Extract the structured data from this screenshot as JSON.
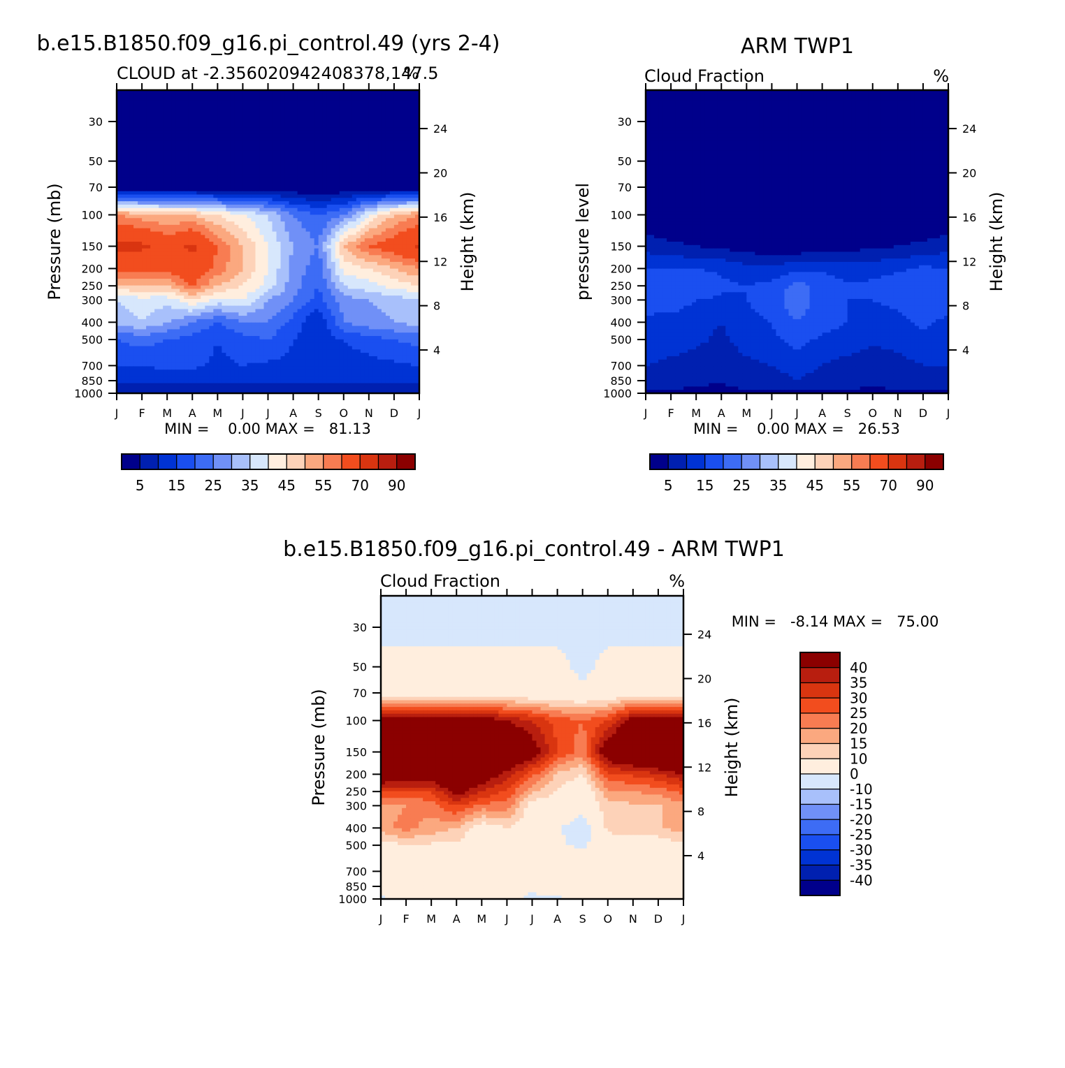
{
  "palettes": {
    "full": [
      "#00008b",
      "#0020b0",
      "#0033d4",
      "#1a4ff0",
      "#3d6cf5",
      "#7090f7",
      "#a8c0fb",
      "#d7e7fc",
      "#ffeede",
      "#fdd2b8",
      "#fba87f",
      "#f87c52",
      "#f24d1e",
      "#d93510",
      "#b81e0f",
      "#8b0000"
    ],
    "diff": [
      "#00008b",
      "#0020b0",
      "#0033d4",
      "#1a4ff0",
      "#3d6cf5",
      "#7090f7",
      "#a8c0fb",
      "#d7e7fc",
      "#ffeede",
      "#fdd2b8",
      "#fba87f",
      "#f87c52",
      "#f24d1e",
      "#d93510",
      "#b81e0f",
      "#8b0000"
    ]
  },
  "months": [
    "J",
    "F",
    "M",
    "A",
    "M",
    "J",
    "J",
    "A",
    "S",
    "O",
    "N",
    "D",
    "J"
  ],
  "pressure_ticks": [
    "30",
    "50",
    "70",
    "100",
    "150",
    "200",
    "250",
    "300",
    "400",
    "500",
    "700",
    "850",
    "1000"
  ],
  "height_ticks": [
    "24",
    "20",
    "16",
    "12",
    "8",
    "4"
  ],
  "panels": {
    "model": {
      "title": "b.e15.B1850.f09_g16.pi_control.49 (yrs 2-4)",
      "left_label": "CLOUD at -2.356020942408378,147.5",
      "right_label": "%",
      "ylabel": "Pressure (mb)",
      "y2label": "Height (km)",
      "minmax": "MIN =    0.00 MAX =   81.13",
      "colorbar_labels": [
        "5",
        "15",
        "25",
        "35",
        "45",
        "55",
        "70",
        "90"
      ]
    },
    "obs": {
      "title": "ARM TWP1",
      "left_label": "Cloud Fraction",
      "right_label": "%",
      "ylabel": "pressure level",
      "y2label": "Height (km)",
      "minmax": "MIN =    0.00 MAX =   26.53",
      "colorbar_labels": [
        "5",
        "15",
        "25",
        "35",
        "45",
        "55",
        "70",
        "90"
      ]
    },
    "diff": {
      "title": "b.e15.B1850.f09_g16.pi_control.49 - ARM TWP1",
      "left_label": "Cloud Fraction",
      "right_label": "%",
      "ylabel": "Pressure (mb)",
      "y2label": "Height (km)",
      "minmax": "MIN =   -8.14 MAX =   75.00",
      "colorbar_labels": [
        "40",
        "35",
        "30",
        "25",
        "20",
        "15",
        "10",
        "0",
        "-10",
        "-15",
        "-20",
        "-25",
        "-30",
        "-35",
        "-40"
      ]
    }
  },
  "chart_data": [
    {
      "type": "heatmap",
      "title": "b.e15.B1850.f09_g16.pi_control.49 (yrs 2-4)",
      "subtitle": "CLOUD at -2.356020942408378,147.5",
      "ylabel": "Pressure (mb)",
      "x": [
        "J",
        "F",
        "M",
        "A",
        "M",
        "J",
        "J",
        "A",
        "S",
        "O",
        "N",
        "D",
        "J"
      ],
      "y": [
        30,
        50,
        70,
        100,
        150,
        200,
        250,
        300,
        400,
        500,
        700,
        850,
        1000
      ],
      "min": 0.0,
      "max": 81.13,
      "levels": [
        5,
        10,
        15,
        20,
        25,
        30,
        35,
        40,
        45,
        50,
        55,
        60,
        70,
        80,
        90
      ],
      "values": [
        [
          0,
          0,
          0,
          0,
          0,
          0,
          0,
          0,
          0,
          0,
          0,
          0,
          0
        ],
        [
          0,
          0,
          0,
          0,
          0,
          0,
          0,
          0,
          0,
          0,
          0,
          0,
          0
        ],
        [
          0,
          0,
          0,
          0,
          0,
          0,
          0,
          0,
          0,
          0,
          0,
          0,
          0
        ],
        [
          55,
          52,
          50,
          50,
          45,
          40,
          35,
          25,
          20,
          25,
          40,
          50,
          55
        ],
        [
          72,
          72,
          65,
          72,
          60,
          50,
          40,
          30,
          25,
          50,
          60,
          65,
          72
        ],
        [
          65,
          62,
          62,
          67,
          58,
          50,
          40,
          28,
          22,
          42,
          45,
          50,
          55
        ],
        [
          48,
          50,
          50,
          60,
          50,
          45,
          38,
          27,
          20,
          35,
          38,
          42,
          45
        ],
        [
          35,
          38,
          37,
          45,
          38,
          40,
          30,
          25,
          18,
          28,
          30,
          32,
          35
        ],
        [
          32,
          35,
          30,
          25,
          20,
          25,
          25,
          18,
          10,
          25,
          28,
          30,
          32
        ],
        [
          20,
          22,
          20,
          18,
          15,
          18,
          20,
          15,
          12,
          15,
          18,
          20,
          22
        ],
        [
          15,
          15,
          16,
          16,
          14,
          15,
          14,
          14,
          12,
          12,
          13,
          14,
          15
        ],
        [
          12,
          12,
          12,
          12,
          12,
          11,
          11,
          11,
          11,
          11,
          12,
          12,
          12
        ],
        [
          5,
          5,
          5,
          5,
          5,
          5,
          5,
          5,
          5,
          5,
          5,
          5,
          5
        ]
      ]
    },
    {
      "type": "heatmap",
      "title": "ARM TWP1",
      "subtitle": "Cloud Fraction",
      "ylabel": "pressure level",
      "x": [
        "J",
        "F",
        "M",
        "A",
        "M",
        "J",
        "J",
        "A",
        "S",
        "O",
        "N",
        "D",
        "J"
      ],
      "y": [
        30,
        50,
        70,
        100,
        150,
        200,
        250,
        300,
        400,
        500,
        700,
        850,
        1000
      ],
      "min": 0.0,
      "max": 26.53,
      "levels": [
        5,
        10,
        15,
        20,
        25,
        30,
        35,
        40,
        45,
        50,
        55,
        60,
        70,
        80,
        90
      ],
      "values": [
        [
          0,
          0,
          0,
          0,
          0,
          0,
          0,
          0,
          0,
          0,
          0,
          0,
          0
        ],
        [
          0,
          0,
          0,
          0,
          0,
          0,
          0,
          0,
          0,
          0,
          0,
          0,
          0
        ],
        [
          0,
          0,
          0,
          0,
          0,
          0,
          0,
          0,
          0,
          0,
          0,
          0,
          0
        ],
        [
          0,
          0,
          0,
          0,
          0,
          0,
          0,
          0,
          0,
          0,
          0,
          0,
          0
        ],
        [
          8,
          6,
          5,
          4,
          2,
          1,
          1,
          2,
          3,
          4,
          5,
          6,
          8
        ],
        [
          15,
          15,
          15,
          14,
          12,
          12,
          13,
          14,
          12,
          13,
          14,
          16,
          15
        ],
        [
          18,
          20,
          20,
          16,
          15,
          16,
          22,
          18,
          16,
          16,
          18,
          20,
          18
        ],
        [
          17,
          18,
          15,
          14,
          15,
          17,
          24,
          17,
          15,
          15,
          16,
          18,
          17
        ],
        [
          14,
          13,
          12,
          10,
          14,
          15,
          20,
          17,
          15,
          13,
          14,
          16,
          14
        ],
        [
          13,
          12,
          11,
          9,
          12,
          14,
          17,
          14,
          13,
          11,
          12,
          14,
          13
        ],
        [
          10,
          9,
          8,
          7,
          9,
          10,
          12,
          10,
          8,
          7,
          8,
          10,
          10
        ],
        [
          8,
          7,
          6,
          5,
          7,
          8,
          10,
          8,
          7,
          6,
          7,
          8,
          8
        ],
        [
          4,
          4,
          4,
          4,
          4,
          4,
          4,
          4,
          4,
          4,
          4,
          4,
          4
        ]
      ]
    },
    {
      "type": "heatmap",
      "title": "b.e15.B1850.f09_g16.pi_control.49 - ARM TWP1",
      "subtitle": "Cloud Fraction",
      "ylabel": "Pressure (mb)",
      "x": [
        "J",
        "F",
        "M",
        "A",
        "M",
        "J",
        "J",
        "A",
        "S",
        "O",
        "N",
        "D",
        "J"
      ],
      "y": [
        30,
        50,
        70,
        100,
        150,
        200,
        250,
        300,
        400,
        500,
        700,
        850,
        1000
      ],
      "min": -8.14,
      "max": 75.0,
      "levels": [
        -40,
        -35,
        -30,
        -25,
        -20,
        -15,
        -10,
        0,
        10,
        15,
        20,
        25,
        30,
        35,
        40
      ],
      "values": [
        [
          -2,
          -2,
          -2,
          -2,
          -2,
          -2,
          -2,
          -2,
          -2,
          -2,
          -2,
          -2,
          -2
        ],
        [
          2,
          2,
          2,
          2,
          2,
          2,
          2,
          2,
          -2,
          2,
          2,
          2,
          2
        ],
        [
          5,
          5,
          5,
          5,
          5,
          4,
          3,
          3,
          2,
          3,
          5,
          5,
          5
        ],
        [
          45,
          45,
          45,
          45,
          45,
          40,
          35,
          28,
          25,
          30,
          45,
          45,
          45
        ],
        [
          65,
          62,
          62,
          65,
          60,
          55,
          45,
          30,
          22,
          48,
          55,
          60,
          65
        ],
        [
          50,
          47,
          47,
          53,
          46,
          38,
          27,
          14,
          10,
          29,
          31,
          34,
          40
        ],
        [
          30,
          30,
          30,
          44,
          35,
          29,
          16,
          9,
          4,
          19,
          20,
          22,
          27
        ],
        [
          18,
          20,
          22,
          31,
          23,
          23,
          6,
          8,
          3,
          13,
          14,
          14,
          18
        ],
        [
          18,
          22,
          18,
          15,
          6,
          10,
          5,
          1,
          -5,
          12,
          14,
          14,
          18
        ],
        [
          7,
          10,
          9,
          9,
          3,
          4,
          3,
          1,
          -1,
          4,
          6,
          6,
          9
        ],
        [
          5,
          6,
          8,
          9,
          5,
          5,
          2,
          4,
          4,
          5,
          5,
          4,
          5
        ],
        [
          4,
          5,
          6,
          7,
          5,
          3,
          1,
          3,
          4,
          5,
          5,
          4,
          4
        ],
        [
          -1,
          1,
          1,
          1,
          1,
          1,
          -1,
          -1,
          1,
          1,
          1,
          1,
          1
        ]
      ]
    }
  ]
}
